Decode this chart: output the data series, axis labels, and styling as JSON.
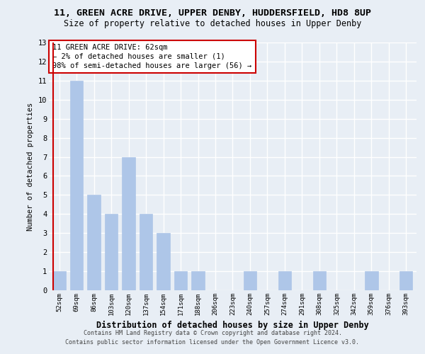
{
  "title": "11, GREEN ACRE DRIVE, UPPER DENBY, HUDDERSFIELD, HD8 8UP",
  "subtitle": "Size of property relative to detached houses in Upper Denby",
  "xlabel": "Distribution of detached houses by size in Upper Denby",
  "ylabel": "Number of detached properties",
  "categories": [
    "52sqm",
    "69sqm",
    "86sqm",
    "103sqm",
    "120sqm",
    "137sqm",
    "154sqm",
    "171sqm",
    "188sqm",
    "206sqm",
    "223sqm",
    "240sqm",
    "257sqm",
    "274sqm",
    "291sqm",
    "308sqm",
    "325sqm",
    "342sqm",
    "359sqm",
    "376sqm",
    "393sqm"
  ],
  "values": [
    1,
    11,
    5,
    4,
    7,
    4,
    3,
    1,
    1,
    0,
    0,
    1,
    0,
    1,
    0,
    1,
    0,
    0,
    1,
    0,
    1
  ],
  "bar_color": "#aec6e8",
  "annotation_box_color": "#cc0000",
  "annotation_text": "11 GREEN ACRE DRIVE: 62sqm\n← 2% of detached houses are smaller (1)\n98% of semi-detached houses are larger (56) →",
  "annotation_fontsize": 7.5,
  "highlight_bar_index": 0,
  "ylim": [
    0,
    13
  ],
  "yticks": [
    0,
    1,
    2,
    3,
    4,
    5,
    6,
    7,
    8,
    9,
    10,
    11,
    12,
    13
  ],
  "footer_line1": "Contains HM Land Registry data © Crown copyright and database right 2024.",
  "footer_line2": "Contains public sector information licensed under the Open Government Licence v3.0.",
  "bg_color": "#e8eef5",
  "grid_color": "#ffffff",
  "title_fontsize": 9.5,
  "subtitle_fontsize": 8.5,
  "xlabel_fontsize": 8.5,
  "ylabel_fontsize": 7.5,
  "footer_fontsize": 6.0
}
